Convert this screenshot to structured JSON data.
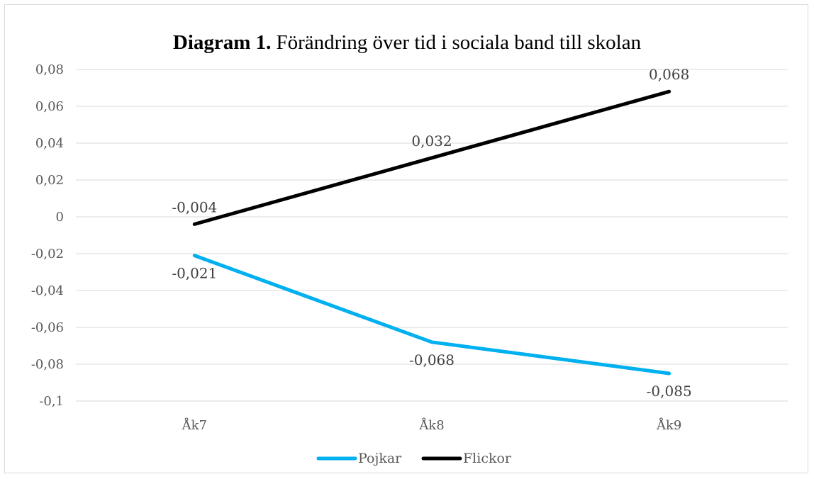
{
  "chart_data": {
    "type": "line",
    "title_bold": "Diagram 1.",
    "title_rest": "Förändring över tid i sociala band till skolan",
    "categories": [
      "Åk7",
      "Åk8",
      "Åk9"
    ],
    "ylim": [
      -0.1,
      0.08
    ],
    "yticks": [
      {
        "value": 0.08,
        "label": "0,08"
      },
      {
        "value": 0.06,
        "label": "0,06"
      },
      {
        "value": 0.04,
        "label": "0,04"
      },
      {
        "value": 0.02,
        "label": "0,02"
      },
      {
        "value": 0,
        "label": "0"
      },
      {
        "value": -0.02,
        "label": "-0,02"
      },
      {
        "value": -0.04,
        "label": "-0,04"
      },
      {
        "value": -0.06,
        "label": "-0,06"
      },
      {
        "value": -0.08,
        "label": "-0,08"
      },
      {
        "value": -0.1,
        "label": "-0,1"
      }
    ],
    "grid": true,
    "legend": "bottom",
    "series": [
      {
        "name": "Pojkar",
        "color": "#00b0f0",
        "values": [
          -0.021,
          -0.068,
          -0.085
        ],
        "labels": [
          "-0,021",
          "-0,068",
          "-0,085"
        ],
        "label_position": "below"
      },
      {
        "name": "Flickor",
        "color": "#000000",
        "values": [
          -0.004,
          0.032,
          0.068
        ],
        "labels": [
          "-0,004",
          "0,032",
          "0,068"
        ],
        "label_position": "above"
      }
    ]
  }
}
